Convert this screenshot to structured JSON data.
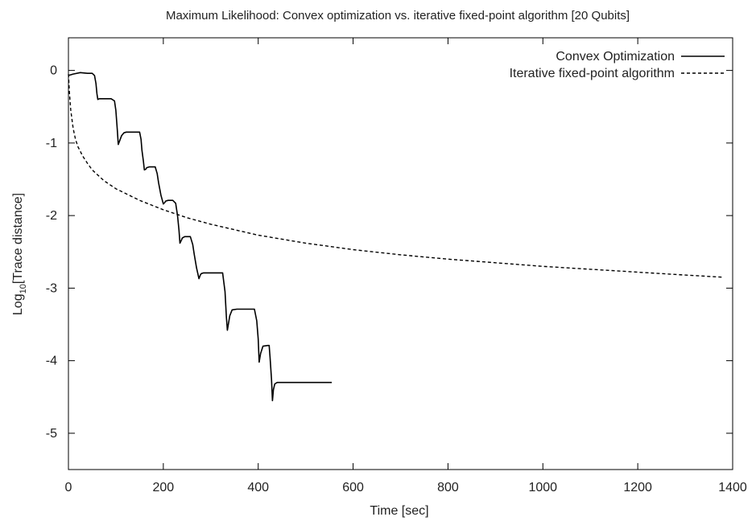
{
  "chart_data": {
    "type": "line",
    "title": "Maximum Likelihood: Convex optimization vs. iterative fixed-point algorithm [20 Qubits]",
    "xlabel": "Time [sec]",
    "ylabel_main": "Log",
    "ylabel_sub": "10",
    "ylabel_rest": "[Trace distance]",
    "xlim": [
      0,
      1400
    ],
    "ylim": [
      -5.5,
      0.45
    ],
    "xticks": [
      0,
      200,
      400,
      600,
      800,
      1000,
      1200,
      1400
    ],
    "xtick_labels": [
      "0",
      "200",
      "400",
      "600",
      "800",
      "1000",
      "1200",
      "1400"
    ],
    "yticks": [
      0,
      -1,
      -2,
      -3,
      -4,
      -5
    ],
    "ytick_labels": [
      "0",
      "-1",
      "-2",
      "-3",
      "-4",
      "-5"
    ],
    "grid": false,
    "legend_position": "top-right",
    "series": [
      {
        "name": "Convex Optimization",
        "style": "solid",
        "color": "#000000",
        "x": [
          0,
          10,
          25,
          40,
          50,
          55,
          58,
          60,
          62,
          65,
          90,
          97,
          100,
          103,
          105,
          108,
          112,
          117,
          122,
          150,
          153,
          155,
          158,
          160,
          163,
          165,
          170,
          183,
          187,
          190,
          195,
          200,
          203,
          205,
          210,
          220,
          226,
          230,
          233,
          235,
          238,
          240,
          245,
          248,
          257,
          262,
          265,
          270,
          275,
          278,
          280,
          285,
          290,
          325,
          330,
          333,
          335,
          340,
          345,
          355,
          392,
          397,
          400,
          402,
          405,
          410,
          420,
          423,
          425,
          428,
          430,
          432,
          435,
          440,
          555
        ],
        "y": [
          -0.07,
          -0.05,
          -0.03,
          -0.04,
          -0.04,
          -0.07,
          -0.18,
          -0.32,
          -0.4,
          -0.39,
          -0.39,
          -0.42,
          -0.55,
          -0.82,
          -1.02,
          -0.97,
          -0.9,
          -0.86,
          -0.85,
          -0.85,
          -0.95,
          -1.1,
          -1.25,
          -1.37,
          -1.36,
          -1.34,
          -1.33,
          -1.33,
          -1.42,
          -1.55,
          -1.72,
          -1.84,
          -1.82,
          -1.8,
          -1.79,
          -1.79,
          -1.83,
          -2.0,
          -2.2,
          -2.38,
          -2.34,
          -2.31,
          -2.29,
          -2.29,
          -2.29,
          -2.4,
          -2.53,
          -2.72,
          -2.87,
          -2.82,
          -2.8,
          -2.79,
          -2.79,
          -2.79,
          -3.05,
          -3.4,
          -3.58,
          -3.38,
          -3.3,
          -3.29,
          -3.29,
          -3.45,
          -3.7,
          -4.02,
          -3.9,
          -3.8,
          -3.79,
          -3.79,
          -3.95,
          -4.25,
          -4.55,
          -4.4,
          -4.32,
          -4.3,
          -4.3
        ]
      },
      {
        "name": "Iterative fixed-point algorithm",
        "style": "dashed",
        "color": "#000000",
        "x": [
          0,
          2,
          5,
          10,
          15,
          20,
          30,
          40,
          50,
          75,
          100,
          150,
          200,
          250,
          300,
          400,
          500,
          600,
          700,
          800,
          900,
          1000,
          1100,
          1200,
          1300,
          1380
        ],
        "y": [
          -0.05,
          -0.3,
          -0.55,
          -0.8,
          -0.95,
          -1.05,
          -1.18,
          -1.28,
          -1.37,
          -1.52,
          -1.63,
          -1.79,
          -1.92,
          -2.03,
          -2.12,
          -2.27,
          -2.38,
          -2.47,
          -2.54,
          -2.6,
          -2.65,
          -2.7,
          -2.74,
          -2.78,
          -2.82,
          -2.85
        ]
      }
    ]
  }
}
